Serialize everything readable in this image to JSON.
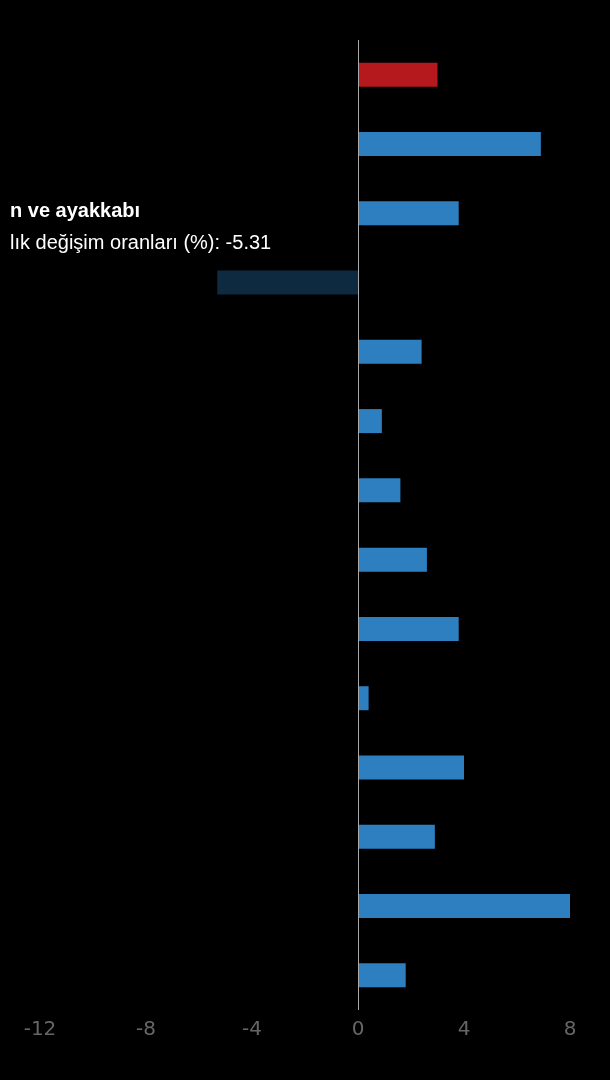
{
  "chart_data": {
    "type": "bar",
    "orientation": "horizontal",
    "categories": [
      null,
      null,
      null,
      null,
      null,
      null,
      null,
      null,
      null,
      null,
      null,
      null,
      null,
      null
    ],
    "values": [
      3.0,
      6.9,
      3.8,
      -5.31,
      2.4,
      0.9,
      1.6,
      2.6,
      3.8,
      0.4,
      4.0,
      2.9,
      8.0,
      1.8
    ],
    "colors": [
      "#b5191e",
      "#2e7fc0",
      "#2e7fc0",
      "#0e2a40",
      "#2e7fc0",
      "#2e7fc0",
      "#2e7fc0",
      "#2e7fc0",
      "#2e7fc0",
      "#2e7fc0",
      "#2e7fc0",
      "#2e7fc0",
      "#2e7fc0",
      "#2e7fc0"
    ],
    "xlim": [
      -12,
      8
    ],
    "xticks": [
      -12,
      -8,
      -4,
      0,
      4,
      8
    ],
    "annotations": [
      "n ve ayakkabı",
      "lık değişim oranları (%): -5.31"
    ],
    "ref_lines": [
      {
        "axis": "x",
        "value": 0,
        "color": "#aaaaaa"
      }
    ],
    "grid": false
  }
}
